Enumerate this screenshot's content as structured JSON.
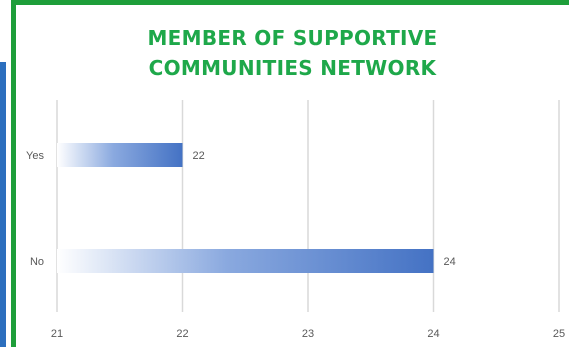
{
  "title_lines": [
    "MEMBER OF SUPPORTIVE",
    "COMMUNITIES NETWORK"
  ],
  "colors": {
    "frame_green": "#1e9e3a",
    "title_green": "#1ea84a",
    "side_blue": "#2c6fbe",
    "bar_blue": "#4472c4",
    "gridline": "#d9d9d9",
    "text": "#595959"
  },
  "chart_data": {
    "type": "bar",
    "orientation": "horizontal",
    "categories": [
      "Yes",
      "No"
    ],
    "values": [
      22,
      24
    ],
    "data_labels": [
      "22",
      "24"
    ],
    "xlim": [
      21,
      25
    ],
    "x_ticks": [
      "21",
      "22",
      "23",
      "24",
      "25"
    ],
    "grid": true,
    "legend": "none",
    "fill": "gradient"
  }
}
